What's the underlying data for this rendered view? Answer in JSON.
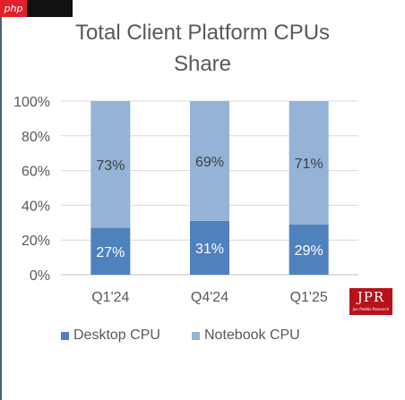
{
  "watermark": {
    "text": "php"
  },
  "logo": {
    "text": "JPR",
    "subtext": "Jon Peddie Research"
  },
  "chart_data": {
    "type": "bar",
    "stacked": true,
    "title": "Total Client Platform CPUs Share",
    "title_lines": [
      "Total Client Platform CPUs",
      "Share"
    ],
    "categories": [
      "Q1'24",
      "Q4'24",
      "Q1'25"
    ],
    "series": [
      {
        "name": "Desktop CPU",
        "values": [
          27,
          31,
          29
        ],
        "labels": [
          "27%",
          "31%",
          "29%"
        ],
        "color": "#4f81bd"
      },
      {
        "name": "Notebook CPU",
        "values": [
          73,
          69,
          71
        ],
        "labels": [
          "73%",
          "69%",
          "71%"
        ],
        "color": "#95b3d7"
      }
    ],
    "ylim": [
      0,
      100
    ],
    "yticks": [
      0,
      20,
      40,
      60,
      80,
      100
    ],
    "ytick_labels": [
      "0%",
      "20%",
      "40%",
      "60%",
      "80%",
      "100%"
    ],
    "grid": true,
    "legend_position": "bottom",
    "desktop_label_color": "#ffffff",
    "notebook_label_color": "#404040"
  }
}
